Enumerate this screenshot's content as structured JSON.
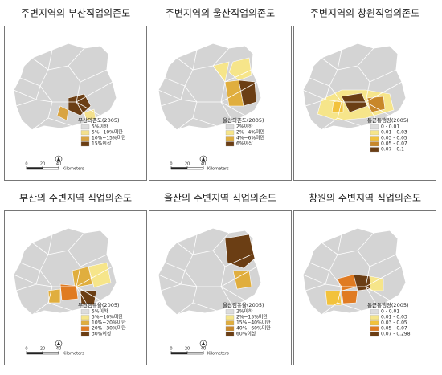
{
  "scale": {
    "ticks": [
      0,
      20,
      40
    ],
    "unit": "Kilometers"
  },
  "panels": [
    {
      "title": "주변지역의 부산직업의존도",
      "scale": true,
      "legend": {
        "title": "부산의존도(2005)",
        "items": [
          {
            "label": "5%이하",
            "color": "#dcdcdc"
          },
          {
            "label": "5%~10%미만",
            "color": "#f3e08c"
          },
          {
            "label": "10%~15%미만",
            "color": "#d9a441"
          },
          {
            "label": "15%이상",
            "color": "#6b3e14"
          }
        ]
      }
    },
    {
      "title": "주변지역의 울산직업의존도",
      "scale": true,
      "legend": {
        "title": "울산의존도(2005)",
        "items": [
          {
            "label": "2%이하",
            "color": "#dcdcdc"
          },
          {
            "label": "2%~4%미만",
            "color": "#f6e58a"
          },
          {
            "label": "4%~6%미만",
            "color": "#e0ae3e"
          },
          {
            "label": "6%이상",
            "color": "#6b3e14"
          }
        ]
      }
    },
    {
      "title": "주변지역의 창원직업의존도",
      "scale": false,
      "legend": {
        "title": "통근통행량(2005)",
        "items": [
          {
            "label": "0 - 0.01",
            "color": "#dcdcdc"
          },
          {
            "label": "0.01 - 0.03",
            "color": "#f6e58a"
          },
          {
            "label": "0.03 - 0.05",
            "color": "#f2c23c"
          },
          {
            "label": "0.05 - 0.07",
            "color": "#c8872a"
          },
          {
            "label": "0.07 - 0.1",
            "color": "#6b3e14"
          }
        ]
      }
    },
    {
      "title": "부산의 주변지역 직업의존도",
      "scale": true,
      "legend": {
        "title": "부산점유율(2005)",
        "items": [
          {
            "label": "5%이하",
            "color": "#dcdcdc"
          },
          {
            "label": "5%~10%미만",
            "color": "#f6e58a"
          },
          {
            "label": "10%~20%미만",
            "color": "#e0ae3e"
          },
          {
            "label": "20%~30%미만",
            "color": "#e07b22"
          },
          {
            "label": "30%이상",
            "color": "#6b3e14"
          }
        ]
      }
    },
    {
      "title": "울산의 주변지역 직업의존도",
      "scale": true,
      "legend": {
        "title": "울산점유율(2005)",
        "items": [
          {
            "label": "2%이하",
            "color": "#dcdcdc"
          },
          {
            "label": "2%~15%미만",
            "color": "#f6e58a"
          },
          {
            "label": "15%~40%미만",
            "color": "#e0ae3e"
          },
          {
            "label": "40%~60%미만",
            "color": "#c8872a"
          },
          {
            "label": "60%이상",
            "color": "#6b3e14"
          }
        ]
      }
    },
    {
      "title": "창원의 주변지역 직업의존도",
      "scale": false,
      "legend": {
        "title": "통근통행량(2005)",
        "items": [
          {
            "label": "0 - 0.01",
            "color": "#dcdcdc"
          },
          {
            "label": "0.01 - 0.03",
            "color": "#f6e58a"
          },
          {
            "label": "0.03 - 0.05",
            "color": "#f2c23c"
          },
          {
            "label": "0.05 - 0.07",
            "color": "#e07b22"
          },
          {
            "label": "0.07 - 0.298",
            "color": "#6b3e14"
          }
        ]
      }
    }
  ]
}
